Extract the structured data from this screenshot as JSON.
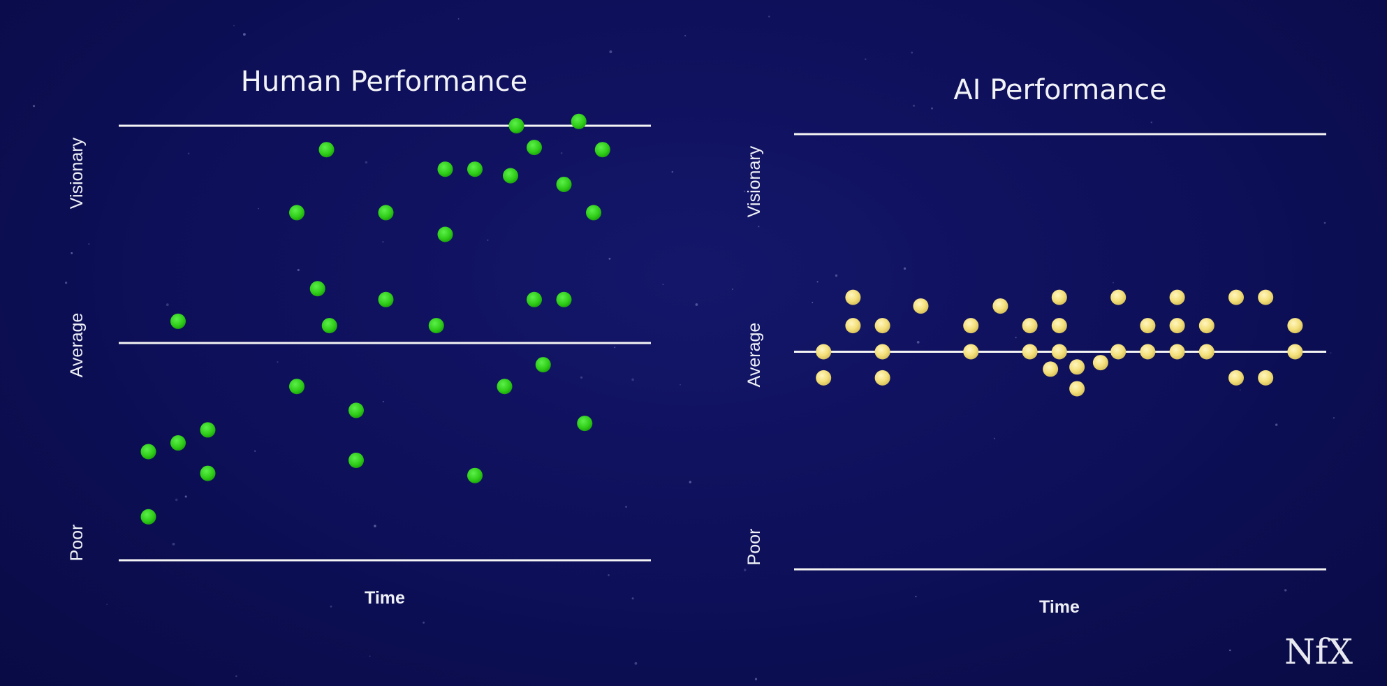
{
  "chart_data": [
    {
      "type": "scatter",
      "title": "Human Performance",
      "xlabel": "Time",
      "y_levels": [
        "Poor",
        "Average",
        "Visionary"
      ],
      "ylim": [
        0,
        2
      ],
      "xlim": [
        0,
        18
      ],
      "reference_lines": [
        0,
        1,
        2
      ],
      "color": "#2ecc17",
      "points": [
        {
          "x": 1,
          "y": 0.5
        },
        {
          "x": 1,
          "y": 0.2
        },
        {
          "x": 2,
          "y": 0.54
        },
        {
          "x": 2,
          "y": 1.1
        },
        {
          "x": 3,
          "y": 0.6
        },
        {
          "x": 3,
          "y": 0.4
        },
        {
          "x": 6,
          "y": 1.6
        },
        {
          "x": 6,
          "y": 0.8
        },
        {
          "x": 6.7,
          "y": 1.25
        },
        {
          "x": 7,
          "y": 1.89
        },
        {
          "x": 7.1,
          "y": 1.08
        },
        {
          "x": 8,
          "y": 0.69
        },
        {
          "x": 8,
          "y": 0.46
        },
        {
          "x": 9,
          "y": 1.6
        },
        {
          "x": 9,
          "y": 1.2
        },
        {
          "x": 10.7,
          "y": 1.08
        },
        {
          "x": 11,
          "y": 1.8
        },
        {
          "x": 11,
          "y": 1.5
        },
        {
          "x": 12,
          "y": 1.8
        },
        {
          "x": 12,
          "y": 0.39
        },
        {
          "x": 13,
          "y": 0.8
        },
        {
          "x": 13.2,
          "y": 1.77
        },
        {
          "x": 13.4,
          "y": 2.0
        },
        {
          "x": 14,
          "y": 1.9
        },
        {
          "x": 14,
          "y": 1.2
        },
        {
          "x": 14.3,
          "y": 0.9
        },
        {
          "x": 15,
          "y": 1.73
        },
        {
          "x": 15,
          "y": 1.2
        },
        {
          "x": 15.5,
          "y": 2.02
        },
        {
          "x": 15.7,
          "y": 0.63
        },
        {
          "x": 16,
          "y": 1.6
        },
        {
          "x": 16.3,
          "y": 1.89
        }
      ]
    },
    {
      "type": "scatter",
      "title": "AI Performance",
      "xlabel": "Time",
      "y_levels": [
        "Poor",
        "Average",
        "Visionary"
      ],
      "ylim": [
        0,
        2
      ],
      "xlim": [
        0,
        18
      ],
      "reference_lines": [
        0,
        1,
        2
      ],
      "color": "#f4e07c",
      "points": [
        {
          "x": 1,
          "y": 1.0
        },
        {
          "x": 1,
          "y": 0.88
        },
        {
          "x": 2,
          "y": 1.25
        },
        {
          "x": 2,
          "y": 1.12
        },
        {
          "x": 3,
          "y": 1.12
        },
        {
          "x": 3,
          "y": 1.0
        },
        {
          "x": 3,
          "y": 0.88
        },
        {
          "x": 4.3,
          "y": 1.21
        },
        {
          "x": 6,
          "y": 1.12
        },
        {
          "x": 6,
          "y": 1.0
        },
        {
          "x": 7,
          "y": 1.21
        },
        {
          "x": 8,
          "y": 1.12
        },
        {
          "x": 8,
          "y": 1.0
        },
        {
          "x": 8.7,
          "y": 0.92
        },
        {
          "x": 9,
          "y": 1.25
        },
        {
          "x": 9,
          "y": 1.12
        },
        {
          "x": 9,
          "y": 1.0
        },
        {
          "x": 9.6,
          "y": 0.93
        },
        {
          "x": 9.6,
          "y": 0.83
        },
        {
          "x": 10.4,
          "y": 0.95
        },
        {
          "x": 11,
          "y": 1.25
        },
        {
          "x": 11,
          "y": 1.0
        },
        {
          "x": 12,
          "y": 1.12
        },
        {
          "x": 12,
          "y": 1.0
        },
        {
          "x": 13,
          "y": 1.25
        },
        {
          "x": 13,
          "y": 1.12
        },
        {
          "x": 13,
          "y": 1.0
        },
        {
          "x": 14,
          "y": 1.12
        },
        {
          "x": 14,
          "y": 1.0
        },
        {
          "x": 15,
          "y": 1.25
        },
        {
          "x": 15,
          "y": 0.88
        },
        {
          "x": 16,
          "y": 1.25
        },
        {
          "x": 16,
          "y": 0.88
        },
        {
          "x": 17,
          "y": 1.12
        },
        {
          "x": 17,
          "y": 1.0
        }
      ]
    }
  ],
  "logo": {
    "text": "NfX"
  }
}
